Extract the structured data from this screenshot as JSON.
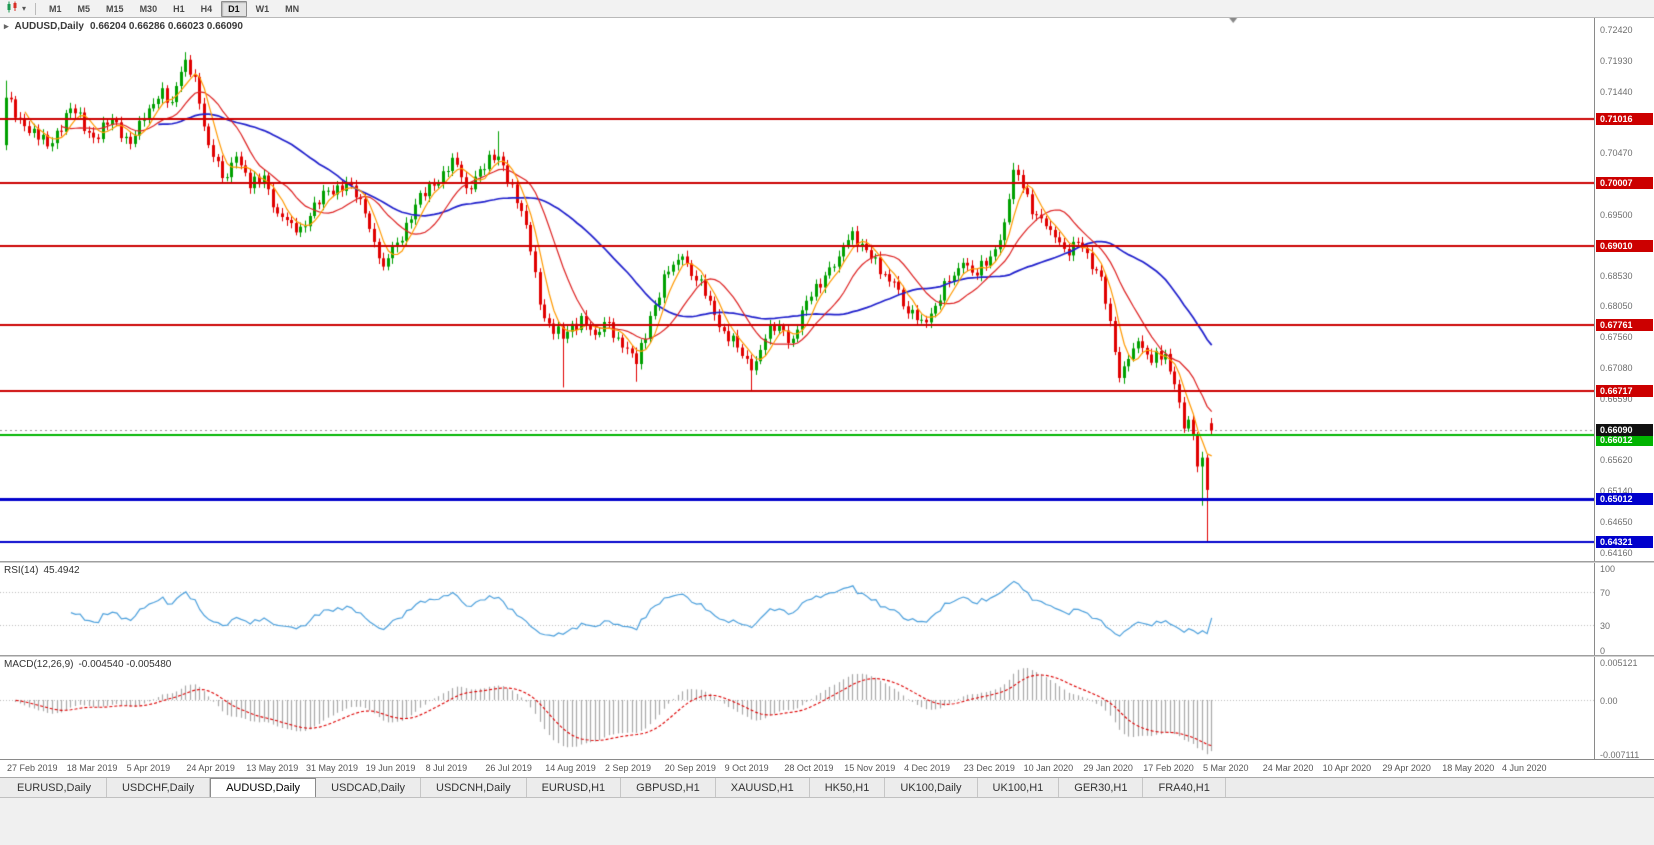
{
  "toolbar": {
    "timeframes": [
      "M1",
      "M5",
      "M15",
      "M30",
      "H1",
      "H4",
      "D1",
      "W1",
      "MN"
    ],
    "active": "D1"
  },
  "chart": {
    "title": "AUDUSD,Daily",
    "ohlc_text": "0.66204 0.66286 0.66023 0.66090"
  },
  "rsi": {
    "label": "RSI(14)",
    "value": "45.4942"
  },
  "macd": {
    "label": "MACD(12,26,9)",
    "values": "-0.004540 -0.005480"
  },
  "tabs": {
    "items": [
      "EURUSD,Daily",
      "USDCHF,Daily",
      "AUDUSD,Daily",
      "USDCAD,Daily",
      "USDCNH,Daily",
      "EURUSD,H1",
      "GBPUSD,H1",
      "XAUUSD,H1",
      "HK50,H1",
      "UK100,Daily",
      "UK100,H1",
      "GER30,H1",
      "FRA40,H1"
    ],
    "active_index": 2
  },
  "chart_data": {
    "type": "candlestick",
    "symbol": "AUDUSD",
    "period": "Daily",
    "ylim": {
      "top": 0.7261,
      "bottom": 0.64026
    },
    "price_labels": [
      "0.72420",
      "0.71930",
      "0.71440",
      "0.70470",
      "0.69500",
      "0.68530",
      "0.68050",
      "0.67560",
      "0.67080",
      "0.66590",
      "0.65620",
      "0.65140",
      "0.64650",
      "0.64160"
    ],
    "hlines": [
      {
        "price": 0.71016,
        "label": "0.71016",
        "color": "#cc0000",
        "width": 2
      },
      {
        "price": 0.70007,
        "label": "0.70007",
        "color": "#cc0000",
        "width": 2
      },
      {
        "price": 0.6901,
        "label": "0.69010",
        "color": "#cc0000",
        "width": 2
      },
      {
        "price": 0.67761,
        "label": "0.67761",
        "color": "#cc0000",
        "width": 2
      },
      {
        "price": 0.66717,
        "label": "0.66717",
        "color": "#cc0000",
        "width": 2
      },
      {
        "price": 0.66012,
        "label": "0.66012",
        "color": "#00b400",
        "width": 2,
        "tag_dy": 5
      },
      {
        "price": 0.65012,
        "label": "0.65012",
        "color": "#0000cc",
        "width": 3
      },
      {
        "price": 0.64321,
        "label": "0.64321",
        "color": "#0000cc",
        "width": 2
      }
    ],
    "current_price": {
      "value": 0.6609,
      "label": "0.66090",
      "line_color": "#999999",
      "tag_color": "#111111"
    },
    "candles": {
      "count": 263,
      "x0": 5,
      "spacing": 4.6,
      "body_width": 3,
      "up": "#00a000",
      "down": "#e00000",
      "wiggle": 0.0008,
      "wick": 0.0011,
      "waypoints": [
        [
          0,
          0.7135
        ],
        [
          4,
          0.709
        ],
        [
          9,
          0.7058
        ],
        [
          14,
          0.7118
        ],
        [
          19,
          0.7072
        ],
        [
          23,
          0.71
        ],
        [
          27,
          0.7062
        ],
        [
          31,
          0.7118
        ],
        [
          34,
          0.715
        ],
        [
          36,
          0.7128
        ],
        [
          39,
          0.7195
        ],
        [
          41,
          0.7168
        ],
        [
          44,
          0.706
        ],
        [
          47,
          0.7008
        ],
        [
          50,
          0.7042
        ],
        [
          53,
          0.6992
        ],
        [
          56,
          0.7012
        ],
        [
          59,
          0.6952
        ],
        [
          63,
          0.6922
        ],
        [
          66,
          0.6948
        ],
        [
          70,
          0.6988
        ],
        [
          74,
          0.7002
        ],
        [
          78,
          0.6952
        ],
        [
          82,
          0.6868
        ],
        [
          85,
          0.6906
        ],
        [
          89,
          0.6966
        ],
        [
          93,
          0.6996
        ],
        [
          97,
          0.704
        ],
        [
          100,
          0.6992
        ],
        [
          103,
          0.7022
        ],
        [
          107,
          0.7042
        ],
        [
          110,
          0.6998
        ],
        [
          112,
          0.6956
        ],
        [
          114,
          0.6892
        ],
        [
          116,
          0.6808
        ],
        [
          118,
          0.6778
        ],
        [
          121,
          0.6754
        ],
        [
          125,
          0.679
        ],
        [
          128,
          0.676
        ],
        [
          131,
          0.678
        ],
        [
          134,
          0.674
        ],
        [
          137,
          0.6714
        ],
        [
          140,
          0.679
        ],
        [
          144,
          0.686
        ],
        [
          147,
          0.6884
        ],
        [
          150,
          0.6846
        ],
        [
          153,
          0.6814
        ],
        [
          156,
          0.6766
        ],
        [
          159,
          0.674
        ],
        [
          162,
          0.6704
        ],
        [
          165,
          0.6754
        ],
        [
          168,
          0.6774
        ],
        [
          171,
          0.6754
        ],
        [
          174,
          0.6814
        ],
        [
          178,
          0.6854
        ],
        [
          181,
          0.6884
        ],
        [
          184,
          0.6924
        ],
        [
          187,
          0.6894
        ],
        [
          190,
          0.6856
        ],
        [
          193,
          0.6844
        ],
        [
          196,
          0.6794
        ],
        [
          199,
          0.6784
        ],
        [
          202,
          0.6806
        ],
        [
          205,
          0.6844
        ],
        [
          208,
          0.6874
        ],
        [
          211,
          0.6854
        ],
        [
          214,
          0.6884
        ],
        [
          217,
          0.6938
        ],
        [
          219,
          0.7021
        ],
        [
          221,
          0.6992
        ],
        [
          224,
          0.695
        ],
        [
          227,
          0.6926
        ],
        [
          230,
          0.6896
        ],
        [
          233,
          0.6906
        ],
        [
          236,
          0.6864
        ],
        [
          238,
          0.6852
        ],
        [
          240,
          0.6782
        ],
        [
          242,
          0.6692
        ],
        [
          244,
          0.6722
        ],
        [
          246,
          0.675
        ],
        [
          249,
          0.6716
        ],
        [
          252,
          0.673
        ],
        [
          254,
          0.6682
        ],
        [
          256,
          0.6612
        ],
        [
          257,
          0.6626
        ],
        [
          258,
          0.6602
        ],
        [
          259,
          0.6552
        ],
        [
          260,
          0.6566
        ],
        [
          261,
          0.6515
        ],
        [
          262,
          0.6609
        ]
      ],
      "overrides": {
        "0": {
          "open": 0.706,
          "low": 0.7052,
          "high": 0.7162
        },
        "39": {
          "high": 0.7207
        },
        "107": {
          "high": 0.7082
        },
        "121": {
          "low": 0.6677
        },
        "137": {
          "low": 0.6686
        },
        "162": {
          "low": 0.6671
        },
        "219": {
          "high": 0.7032
        },
        "260": {
          "low": 0.649
        },
        "261": {
          "low": 0.6433
        },
        "262": {
          "open": 0.66204,
          "high": 0.66286,
          "low": 0.66023,
          "close": 0.6609
        }
      }
    },
    "ma": [
      {
        "period": 34,
        "color": "#2020cc",
        "width": 1.7
      },
      {
        "period": 13,
        "color": "#dd2222",
        "width": 1.2
      },
      {
        "period": 5,
        "color": "#ff9900",
        "width": 1.2
      }
    ],
    "rsi": {
      "period": 14,
      "color": "#4da0dc",
      "levels": [
        70,
        30
      ],
      "axis_labels": [
        "100",
        "70",
        "30",
        "0"
      ]
    },
    "macd": {
      "fast": 12,
      "slow": 26,
      "signal": 9,
      "hist_color": "#a8a8a8",
      "signal_color": "#dd0000",
      "ylim_top": 0.005121,
      "ylim_bottom": -0.007111,
      "axis_labels": [
        "0.005121",
        "0.00",
        "-0.007111"
      ]
    },
    "time_axis": {
      "labels": [
        {
          "i": 0,
          "text": "27 Feb 2019"
        },
        {
          "i": 13,
          "text": "18 Mar 2019"
        },
        {
          "i": 26,
          "text": "5 Apr 2019"
        },
        {
          "i": 39,
          "text": "24 Apr 2019"
        },
        {
          "i": 52,
          "text": "13 May 2019"
        },
        {
          "i": 65,
          "text": "31 May 2019"
        },
        {
          "i": 78,
          "text": "19 Jun 2019"
        },
        {
          "i": 91,
          "text": "8 Jul 2019"
        },
        {
          "i": 104,
          "text": "26 Jul 2019"
        },
        {
          "i": 117,
          "text": "14 Aug 2019"
        },
        {
          "i": 130,
          "text": "2 Sep 2019"
        },
        {
          "i": 143,
          "text": "20 Sep 2019"
        },
        {
          "i": 156,
          "text": "9 Oct 2019"
        },
        {
          "i": 169,
          "text": "28 Oct 2019"
        },
        {
          "i": 182,
          "text": "15 Nov 2019"
        },
        {
          "i": 195,
          "text": "4 Dec 2019"
        },
        {
          "i": 208,
          "text": "23 Dec 2019"
        },
        {
          "i": 221,
          "text": "10 Jan 2020"
        },
        {
          "i": 234,
          "text": "29 Jan 2020"
        },
        {
          "i": 247,
          "text": "17 Feb 2020"
        },
        {
          "i": 260,
          "text": "5 Mar 2020"
        },
        {
          "i": 273,
          "text": "24 Mar 2020"
        },
        {
          "i": 286,
          "text": "10 Apr 2020"
        },
        {
          "i": 299,
          "text": "29 Apr 2020"
        },
        {
          "i": 312,
          "text": "18 May 2020"
        },
        {
          "i": 325,
          "text": "4 Jun 2020"
        }
      ]
    }
  }
}
